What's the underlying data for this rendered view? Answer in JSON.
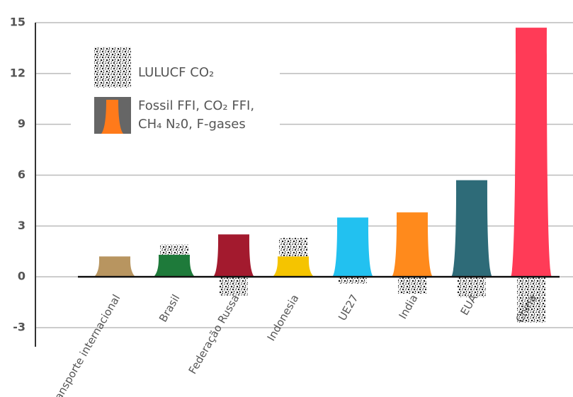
{
  "chart_data": {
    "type": "bar",
    "categories": [
      "Transporte internacional",
      "Brasil",
      "Federação Russa",
      "Indonesia",
      "UE27",
      "India",
      "EUA",
      "China"
    ],
    "series": [
      {
        "name": "Fossil FFI, CO₂ FFI, CH₄ N₂0, F-gases",
        "color": "#ff7a1a",
        "colors": [
          "#b89560",
          "#1e7a3a",
          "#a31a2e",
          "#f5c400",
          "#22c1f0",
          "#ff8a1c",
          "#2e6b78",
          "#ff3b57"
        ],
        "values": [
          1.2,
          1.3,
          2.5,
          1.2,
          3.5,
          3.8,
          5.7,
          14.7
        ]
      },
      {
        "name": "LULUCF CO₂",
        "color": "#777",
        "values": [
          null,
          0.6,
          -1.1,
          1.1,
          -0.4,
          -1.0,
          -1.2,
          -2.7
        ]
      }
    ],
    "ylim": [
      -3,
      15
    ],
    "yticks": [
      -3,
      0,
      3,
      6,
      9,
      12,
      15
    ],
    "grid": true
  }
}
